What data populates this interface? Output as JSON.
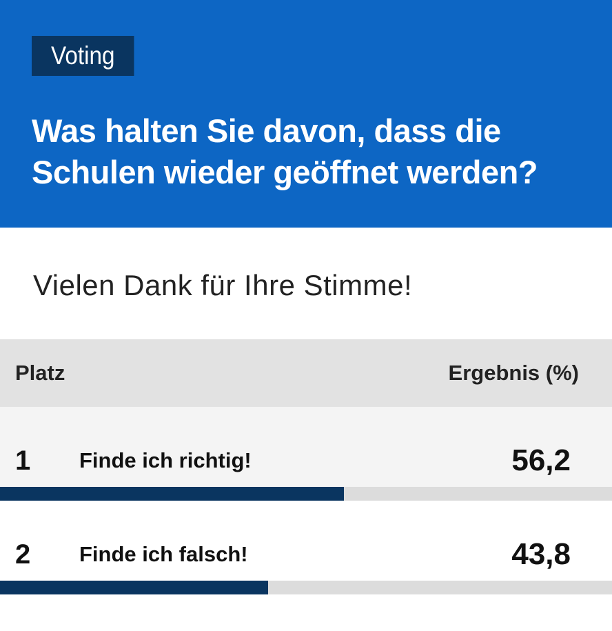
{
  "voting": {
    "badge": "Voting",
    "question": "Was halten Sie davon, dass die Schulen wieder geöffnet werden?",
    "thanks": "Vielen Dank für Ihre Stimme!",
    "table": {
      "col_place": "Platz",
      "col_result": "Ergebnis (%)",
      "rows": [
        {
          "rank": "1",
          "option": "Finde ich richtig!",
          "value": "56,2",
          "percent": 56.2
        },
        {
          "rank": "2",
          "option": "Finde ich falsch!",
          "value": "43,8",
          "percent": 43.8
        }
      ]
    }
  },
  "colors": {
    "header_bg": "#0d66c4",
    "badge_bg": "#0a3560",
    "bar_fill": "#0a3560",
    "bar_track": "#dcdcdc"
  }
}
